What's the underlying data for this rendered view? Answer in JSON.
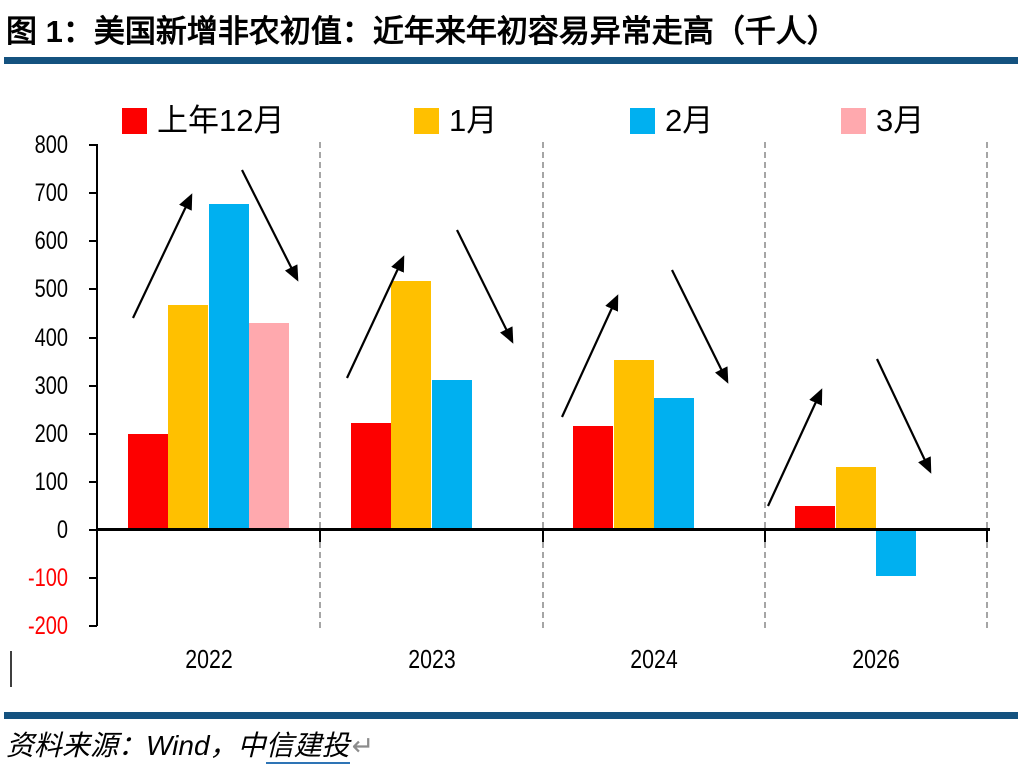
{
  "figure": {
    "title": "图 1：美国新增非农初值：近年来年初容易异常走高（千人）",
    "source": {
      "prefix": "资料来源：Wind，中",
      "linked": "信建投",
      "return_mark": "↵"
    }
  },
  "chart_data": {
    "type": "bar",
    "title": "美国新增非农初值：近年来年初容易异常走高",
    "unit": "千人",
    "categories": [
      "2022",
      "2023",
      "2024",
      "2026"
    ],
    "series": [
      {
        "name": "上年12月",
        "color": "#fd0000",
        "values": [
          199,
          223,
          216,
          50
        ]
      },
      {
        "name": "1月",
        "color": "#ffc000",
        "values": [
          467,
          517,
          353,
          130
        ]
      },
      {
        "name": "2月",
        "color": "#00b0f0",
        "values": [
          678,
          311,
          275,
          -93
        ]
      },
      {
        "name": "3月",
        "color": "#ffa9ae",
        "values": [
          431,
          null,
          null,
          null
        ]
      }
    ],
    "ylim": [
      -200,
      800
    ],
    "ytick_step": 100,
    "legend_position": "top",
    "grid": "dashed vertical separators between year groups",
    "negative_tick_color": "#ff0000",
    "annotations": [
      {
        "group": "2022",
        "direction": "up",
        "from": [
          133,
          318
        ],
        "to": [
          191,
          196
        ]
      },
      {
        "group": "2022",
        "direction": "down",
        "from": [
          242,
          170
        ],
        "to": [
          297,
          279
        ]
      },
      {
        "group": "2023",
        "direction": "up",
        "from": [
          347,
          378
        ],
        "to": [
          403,
          258
        ]
      },
      {
        "group": "2023",
        "direction": "down",
        "from": [
          457,
          230
        ],
        "to": [
          512,
          341
        ]
      },
      {
        "group": "2024",
        "direction": "up",
        "from": [
          562,
          417
        ],
        "to": [
          617,
          297
        ]
      },
      {
        "group": "2024",
        "direction": "down",
        "from": [
          672,
          270
        ],
        "to": [
          727,
          381
        ]
      },
      {
        "group": "2026",
        "direction": "up",
        "from": [
          768,
          506
        ],
        "to": [
          821,
          391
        ]
      },
      {
        "group": "2026",
        "direction": "down",
        "from": [
          877,
          359
        ],
        "to": [
          930,
          471
        ]
      }
    ]
  },
  "theme": {
    "rule_color": "#14527f",
    "link_underline_color": "#2e74b5",
    "dash_color": "#a6a6a6"
  }
}
